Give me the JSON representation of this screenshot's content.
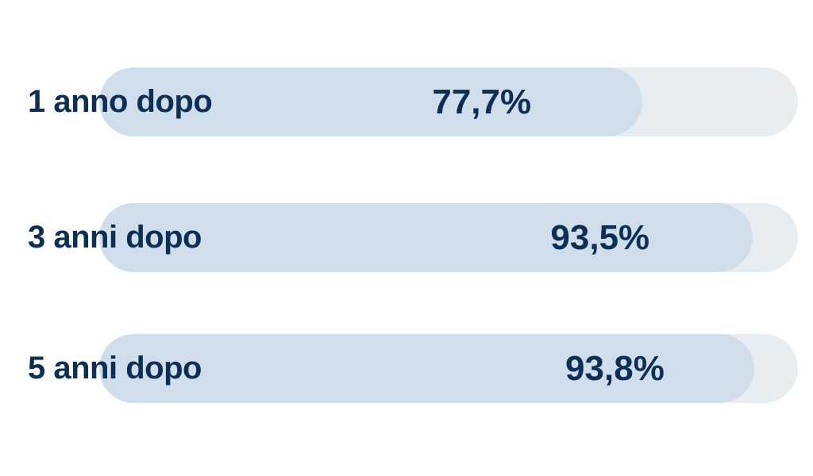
{
  "chart_data": {
    "type": "bar",
    "orientation": "horizontal",
    "categories": [
      "1 anno dopo",
      "3 anni dopo",
      "5 anni dopo"
    ],
    "values": [
      77.7,
      93.5,
      93.8
    ],
    "value_labels": [
      "77,7%",
      "93,5%",
      "93,8%"
    ],
    "xlim": [
      0,
      100
    ],
    "grid": false,
    "colors": {
      "track": "#e8edf2",
      "fill": "#d0deeb",
      "text": "#0b2f55"
    }
  }
}
